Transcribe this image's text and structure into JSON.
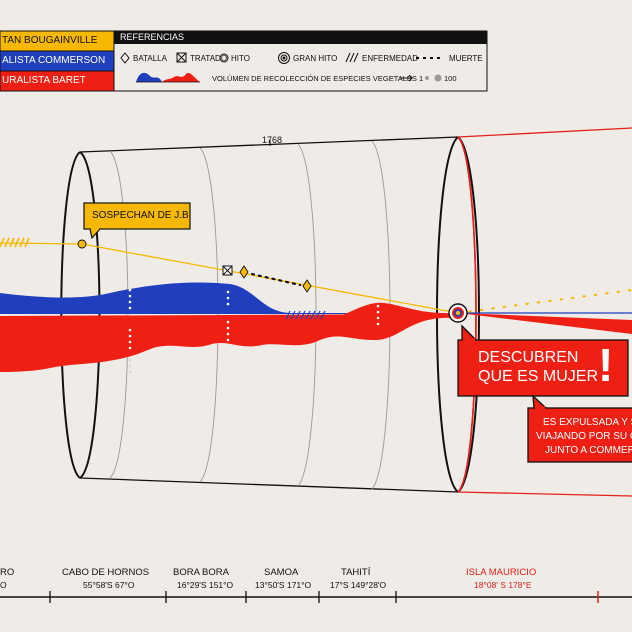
{
  "legend_people": [
    {
      "label": "TAN BOUGAINVILLE",
      "color": "#f6b800",
      "text_color": "#111111"
    },
    {
      "label": "ALISTA COMMERSON",
      "color": "#1f3fbf",
      "text_color": "#ffffff"
    },
    {
      "label": "URALISTA BARET",
      "color": "#f01f14",
      "text_color": "#ffffff"
    }
  ],
  "references": {
    "title": "REFERENCIAS",
    "items": [
      {
        "icon": "diamond-icon",
        "label": "BATALLA"
      },
      {
        "icon": "boxed-x-icon",
        "label": "TRATADO"
      },
      {
        "icon": "circle-icon",
        "label": "HITO"
      },
      {
        "icon": "target-icon",
        "label": "GRAN HITO"
      },
      {
        "icon": "hatch-icon",
        "label": "ENFERMEDAD"
      },
      {
        "icon": "dashed-line-icon",
        "label": "MUERTE"
      }
    ],
    "volume_label": "VOLÚMEN DE RECOLECCIÓN DE ESPECIES VEGETALES",
    "scale_from": "1",
    "scale_to": "100"
  },
  "year_label": "1768",
  "callouts": {
    "suspicion": "SOSPECHAN DE J.B",
    "discovery_line1": "DESCUBREN",
    "discovery_line2": "QUE ES MUJER",
    "discovery_mark": "!",
    "expelled_line1": "ES EXPULSADA Y S",
    "expelled_line2": "VIAJANDO POR SU C",
    "expelled_line3": "JUNTO A COMMER"
  },
  "locations": [
    {
      "name": "RO",
      "coords": "O"
    },
    {
      "name": "CABO DE HORNOS",
      "coords": "55°58'S 67°O"
    },
    {
      "name": "BORA BORA",
      "coords": "16°29'S 151°O"
    },
    {
      "name": "SAMOA",
      "coords": "13°50'S 171°O"
    },
    {
      "name": "TAHITÍ",
      "coords": "17°S 149°28'O"
    },
    {
      "name": "ISLA MAURICIO",
      "coords": "18°08' S 178°E",
      "color": "#e3201a"
    }
  ],
  "colors": {
    "background": "#efebe6",
    "bougainville": "#f6b800",
    "commerson": "#1f3fbf",
    "baret": "#f01f14",
    "ink": "#111111"
  }
}
